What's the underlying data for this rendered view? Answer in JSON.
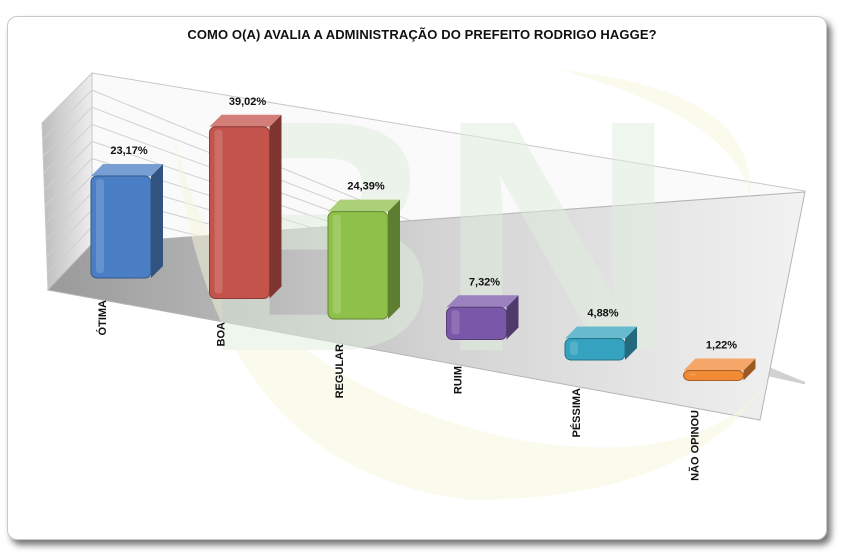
{
  "title": "COMO O(A) AVALIA A ADMINISTRAÇÃO DO PREFEITO RODRIGO HAGGE?",
  "watermark": {
    "text": "BN",
    "colors": [
      "#dfeede",
      "#f6f7dc"
    ]
  },
  "chart_data": {
    "type": "bar",
    "title": "COMO O(A) AVALIA A ADMINISTRAÇÃO DO PREFEITO RODRIGO HAGGE?",
    "categories": [
      "ÓTIMA",
      "BOA",
      "REGULAR",
      "RUIM",
      "PÉSSIMA",
      "NÃO OPINOU"
    ],
    "values": [
      23.17,
      39.02,
      24.39,
      7.32,
      4.88,
      1.22
    ],
    "value_labels": [
      "23,17%",
      "39,02%",
      "24,39%",
      "7,32%",
      "4,88%",
      "1,22%"
    ],
    "colors": [
      "#4a7fc5",
      "#c4534c",
      "#8fc04a",
      "#7a57a8",
      "#35a3bf",
      "#f08a35"
    ],
    "ylim": [
      0,
      45
    ],
    "grid": true,
    "legend": "none",
    "xlabel": "",
    "ylabel": ""
  }
}
